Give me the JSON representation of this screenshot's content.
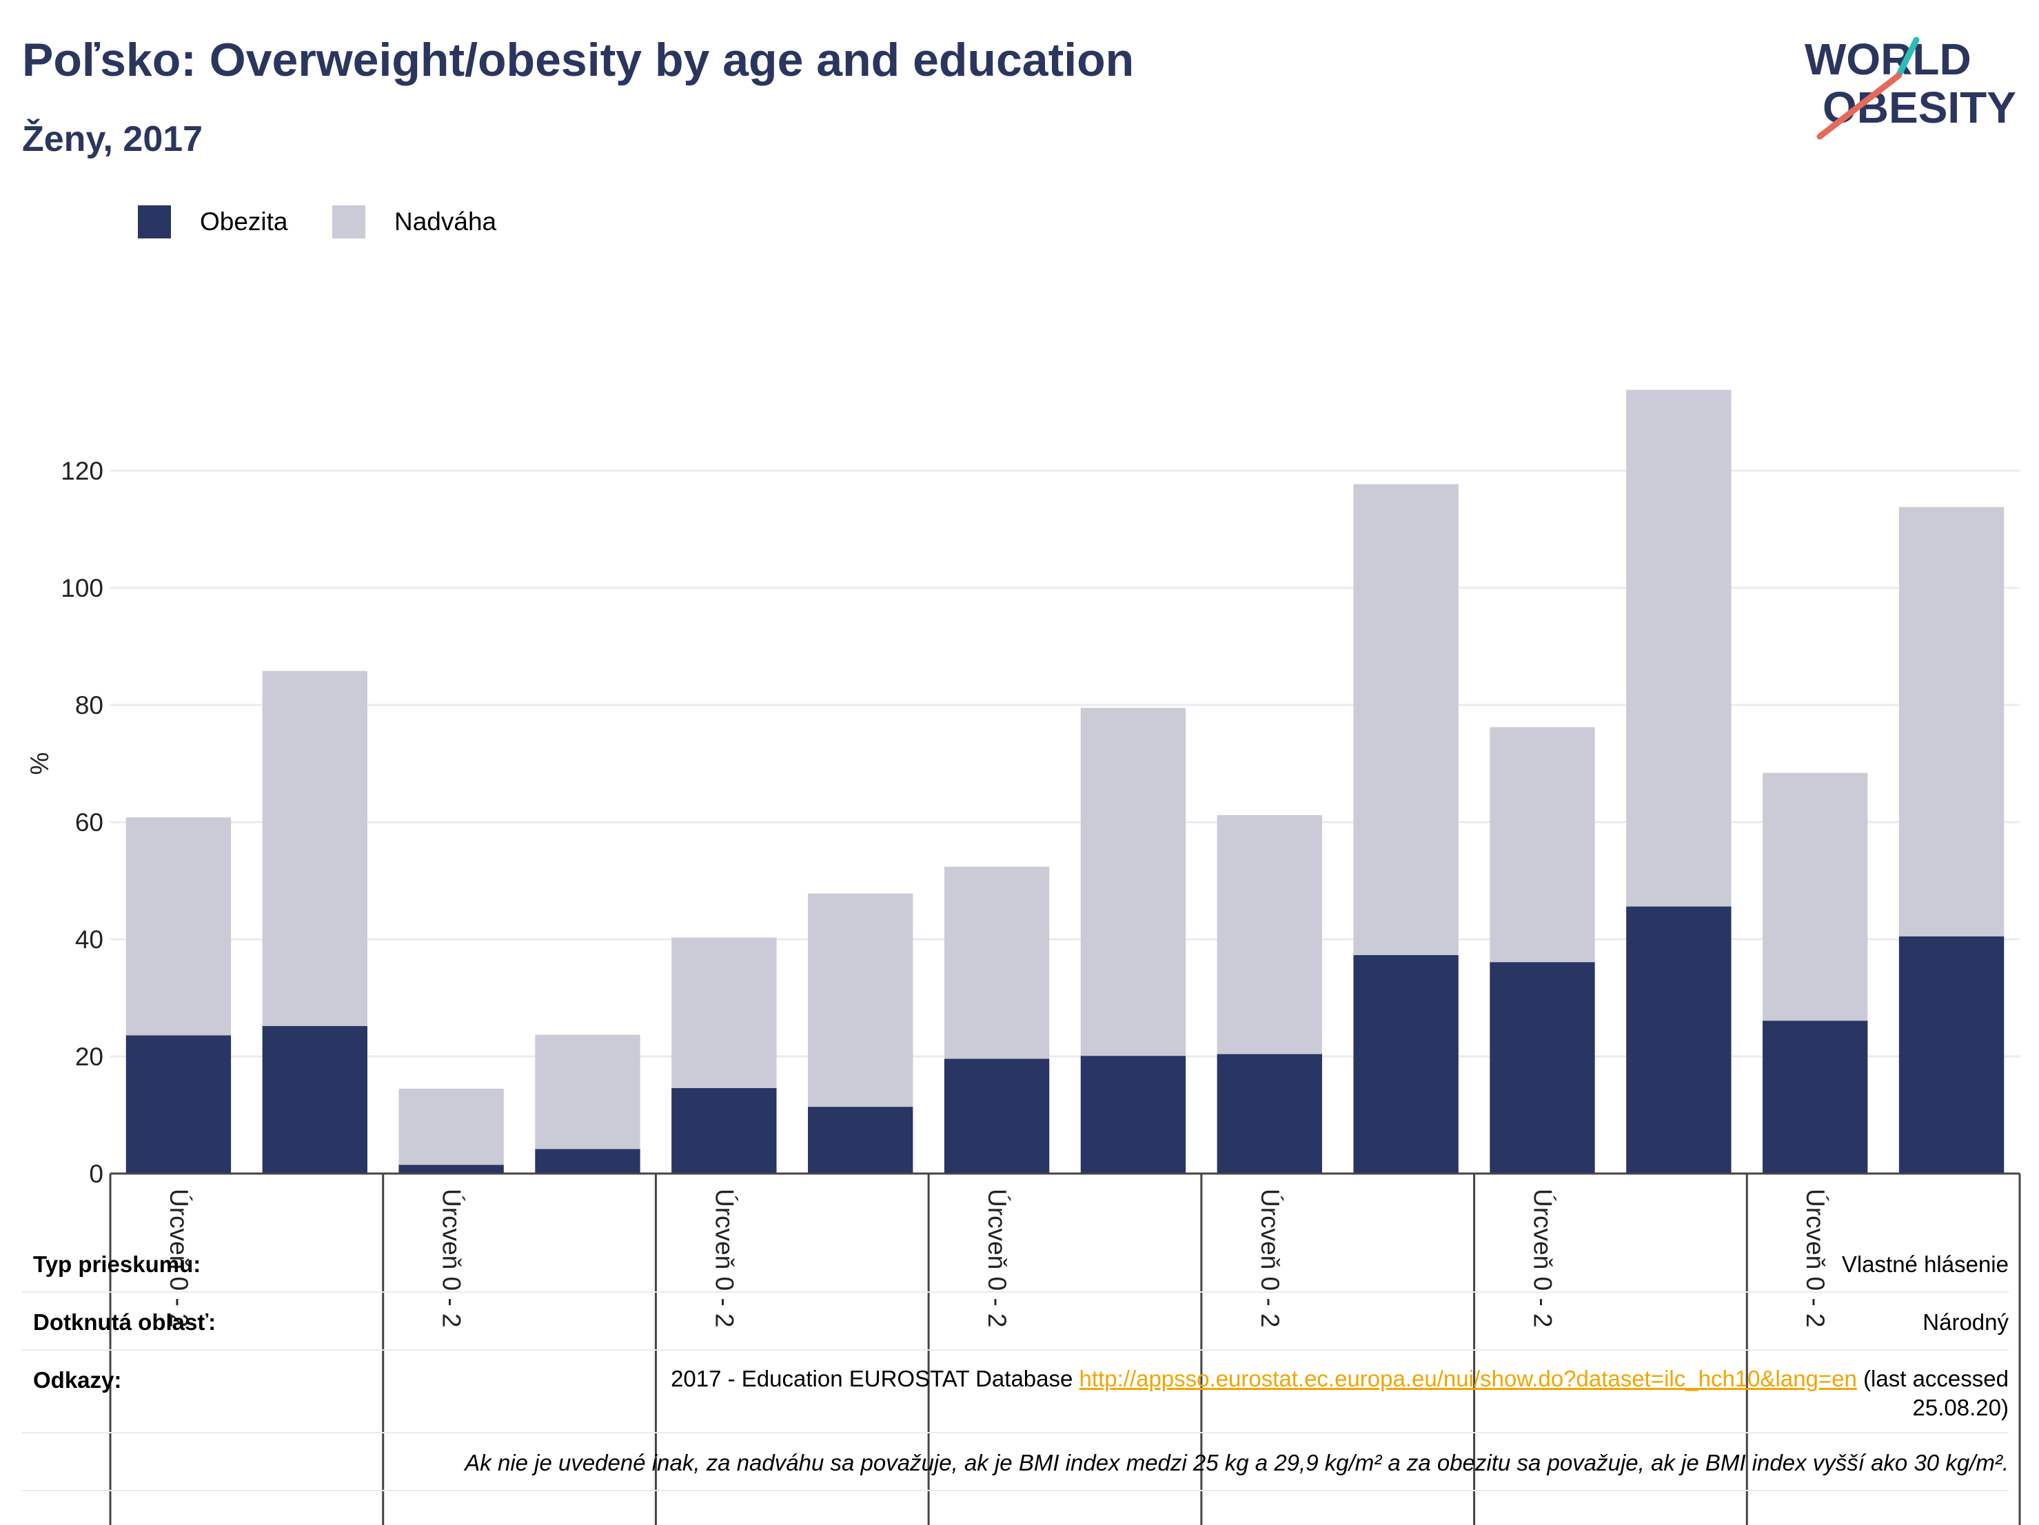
{
  "header": {
    "title": "Poľsko: Overweight/obesity by age and education",
    "subtitle": "Ženy, 2017"
  },
  "logo": {
    "line1": "WORLD",
    "line2": "OBESITY"
  },
  "colors": {
    "obesity": "#293562",
    "overweight": "#cacbd7",
    "title": "#2b365f",
    "link": "#f0a500",
    "logo_teal": "#2dbdb5",
    "logo_red": "#e56a5a"
  },
  "chart_data": {
    "type": "bar",
    "stacked": true,
    "ylabel": "%",
    "ylim": [
      0,
      134
    ],
    "yticks": [
      0,
      20,
      40,
      60,
      80,
      100,
      120
    ],
    "grid": true,
    "legend_position": "top-left",
    "group_labels": [
      "Úrcveň 0 - 2",
      "Úrcveň 0 - 2",
      "Úrcveň 0 - 2",
      "Úrcveň 0 - 2",
      "Úrcveň 0 - 2",
      "Úrcveň 0 - 2",
      "Úrcveň 0 - 2"
    ],
    "series": [
      {
        "name": "Obezita",
        "values": [
          23.6,
          25.2,
          1.5,
          4.2,
          14.6,
          11.4,
          19.6,
          20.1,
          20.4,
          37.3,
          36.1,
          45.6,
          26.1,
          40.5
        ]
      },
      {
        "name": "Nadváha",
        "values": [
          37.2,
          60.6,
          13.0,
          19.5,
          25.7,
          36.4,
          32.8,
          59.4,
          40.8,
          80.4,
          40.1,
          88.2,
          42.3,
          73.3
        ]
      }
    ]
  },
  "notes": {
    "survey_label": "Typ prieskumu:",
    "survey_value": "Vlastné hlásenie",
    "area_label": "Dotknutá oblasť:",
    "area_value": "Národný",
    "refs_label": "Odkazy:",
    "refs_text": "2017 - Education EUROSTAT Database",
    "refs_link": "http://appsso.eurostat.ec.europa.eu/nui/show.do?dataset=ilc_hch10&lang=en",
    "refs_suffix": "(last accessed",
    "refs_date": "25.08.20)",
    "definition": "Ak nie je uvedené inak, za nadváhu sa považuje, ak je BMI index medzi 25 kg a 29,9 kg/m² a za obezitu sa považuje, ak je BMI index vyšší ako 30 kg/m²."
  }
}
